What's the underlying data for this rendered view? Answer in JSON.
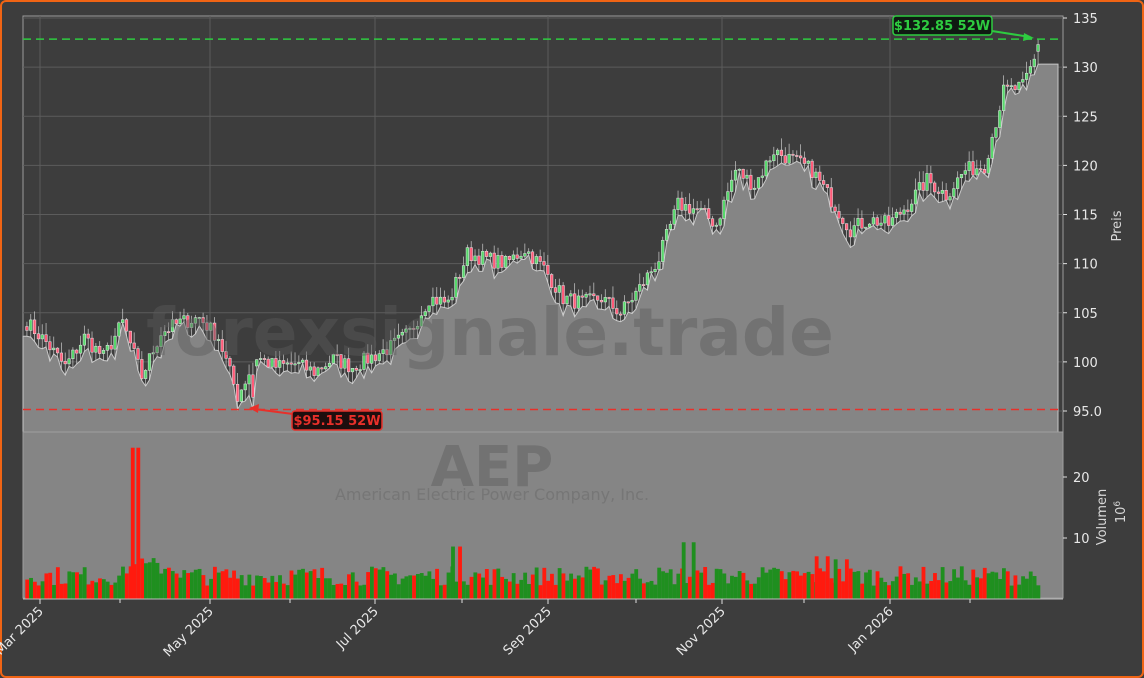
{
  "chart_data": {
    "type": "candlestick",
    "ticker": "AEP",
    "company": "American Electric Power Company, Inc.",
    "watermark": "forexsignale.trade",
    "price_panel": {
      "ylabel": "Preis",
      "yticks": [
        "135",
        "130",
        "125",
        "120",
        "115",
        "110",
        "105",
        "100",
        "95.0"
      ],
      "ytick_values": [
        135,
        130,
        125,
        120,
        115,
        110,
        105,
        100,
        95
      ],
      "ylim": [
        93.0,
        135.2
      ]
    },
    "volume_panel": {
      "ylabel": "Volumen",
      "yscale_label": "10^6",
      "yticks": [
        "20",
        "10"
      ],
      "ytick_values": [
        20,
        10
      ]
    },
    "xticks": [
      "Mar 2025",
      "May 2025",
      "Jul 2025",
      "Sep 2025",
      "Nov 2025",
      "Jan 2026"
    ],
    "annotations": {
      "high_52w": {
        "label": "$132.85 52W",
        "value": 132.85,
        "color": "#2ecc40"
      },
      "low_52w": {
        "label": "$95.15 52W",
        "value": 95.15,
        "color": "#e8302a"
      }
    },
    "close_series_weekly_approx": [
      {
        "date": "2025-02-24",
        "close": 104.0
      },
      {
        "date": "2025-03-03",
        "close": 102.0
      },
      {
        "date": "2025-03-10",
        "close": 99.5
      },
      {
        "date": "2025-03-17",
        "close": 102.5
      },
      {
        "date": "2025-03-24",
        "close": 100.5
      },
      {
        "date": "2025-03-31",
        "close": 104.0
      },
      {
        "date": "2025-04-07",
        "close": 98.5
      },
      {
        "date": "2025-04-14",
        "close": 103.0
      },
      {
        "date": "2025-04-21",
        "close": 104.0
      },
      {
        "date": "2025-04-28",
        "close": 104.5
      },
      {
        "date": "2025-05-05",
        "close": 102.5
      },
      {
        "date": "2025-05-12",
        "close": 96.5
      },
      {
        "date": "2025-05-19",
        "close": 100.5
      },
      {
        "date": "2025-05-26",
        "close": 99.5
      },
      {
        "date": "2025-06-02",
        "close": 99.8
      },
      {
        "date": "2025-06-09",
        "close": 99.0
      },
      {
        "date": "2025-06-16",
        "close": 100.3
      },
      {
        "date": "2025-06-23",
        "close": 99.5
      },
      {
        "date": "2025-06-30",
        "close": 100.5
      },
      {
        "date": "2025-07-07",
        "close": 101.5
      },
      {
        "date": "2025-07-14",
        "close": 103.0
      },
      {
        "date": "2025-07-21",
        "close": 106.5
      },
      {
        "date": "2025-07-28",
        "close": 106.0
      },
      {
        "date": "2025-08-04",
        "close": 111.0
      },
      {
        "date": "2025-08-11",
        "close": 110.5
      },
      {
        "date": "2025-08-18",
        "close": 110.0
      },
      {
        "date": "2025-08-25",
        "close": 111.5
      },
      {
        "date": "2025-09-01",
        "close": 109.5
      },
      {
        "date": "2025-09-08",
        "close": 106.5
      },
      {
        "date": "2025-09-15",
        "close": 106.0
      },
      {
        "date": "2025-09-22",
        "close": 106.5
      },
      {
        "date": "2025-09-29",
        "close": 105.0
      },
      {
        "date": "2025-10-06",
        "close": 107.5
      },
      {
        "date": "2025-10-13",
        "close": 110.5
      },
      {
        "date": "2025-10-20",
        "close": 116.0
      },
      {
        "date": "2025-10-27",
        "close": 115.5
      },
      {
        "date": "2025-11-03",
        "close": 114.0
      },
      {
        "date": "2025-11-10",
        "close": 119.5
      },
      {
        "date": "2025-11-17",
        "close": 118.0
      },
      {
        "date": "2025-11-24",
        "close": 121.5
      },
      {
        "date": "2025-12-01",
        "close": 120.5
      },
      {
        "date": "2025-12-08",
        "close": 119.5
      },
      {
        "date": "2025-12-15",
        "close": 116.5
      },
      {
        "date": "2025-12-22",
        "close": 113.5
      },
      {
        "date": "2025-12-29",
        "close": 114.5
      },
      {
        "date": "2026-01-05",
        "close": 114.0
      },
      {
        "date": "2026-01-12",
        "close": 116.0
      },
      {
        "date": "2026-01-19",
        "close": 118.5
      },
      {
        "date": "2026-01-26",
        "close": 117.0
      },
      {
        "date": "2026-02-02",
        "close": 119.5
      },
      {
        "date": "2026-02-09",
        "close": 120.0
      },
      {
        "date": "2026-02-16",
        "close": 127.5
      },
      {
        "date": "2026-02-23",
        "close": 128.0
      },
      {
        "date": "2026-03-02",
        "close": 132.5
      }
    ],
    "volume_notes": {
      "unit": "millions of shares",
      "typical_range": [
        2,
        6
      ],
      "peak_spike": {
        "approx_date": "2025-04-04",
        "value": 24.8,
        "color": "red"
      },
      "other_spikes": [
        {
          "approx_date": "2025-07-31",
          "value": 8.6,
          "color": "green"
        },
        {
          "approx_date": "2025-10-24",
          "value": 9.3,
          "color": "green"
        },
        {
          "approx_date": "2025-12-12",
          "value": 7.0,
          "color": "red"
        },
        {
          "approx_date": "2025-12-19",
          "value": 6.5,
          "color": "green"
        }
      ]
    },
    "colors": {
      "background": "#3d3d3d",
      "frame_border": "#f06414",
      "area_fill": "#858585",
      "up_candle": "#57d86b",
      "down_candle": "#ff5a78",
      "volume_up": "#1f8f1f",
      "volume_down": "#ff1a0e",
      "grid": "#5c5c5c"
    },
    "grid": true,
    "legend": null
  }
}
